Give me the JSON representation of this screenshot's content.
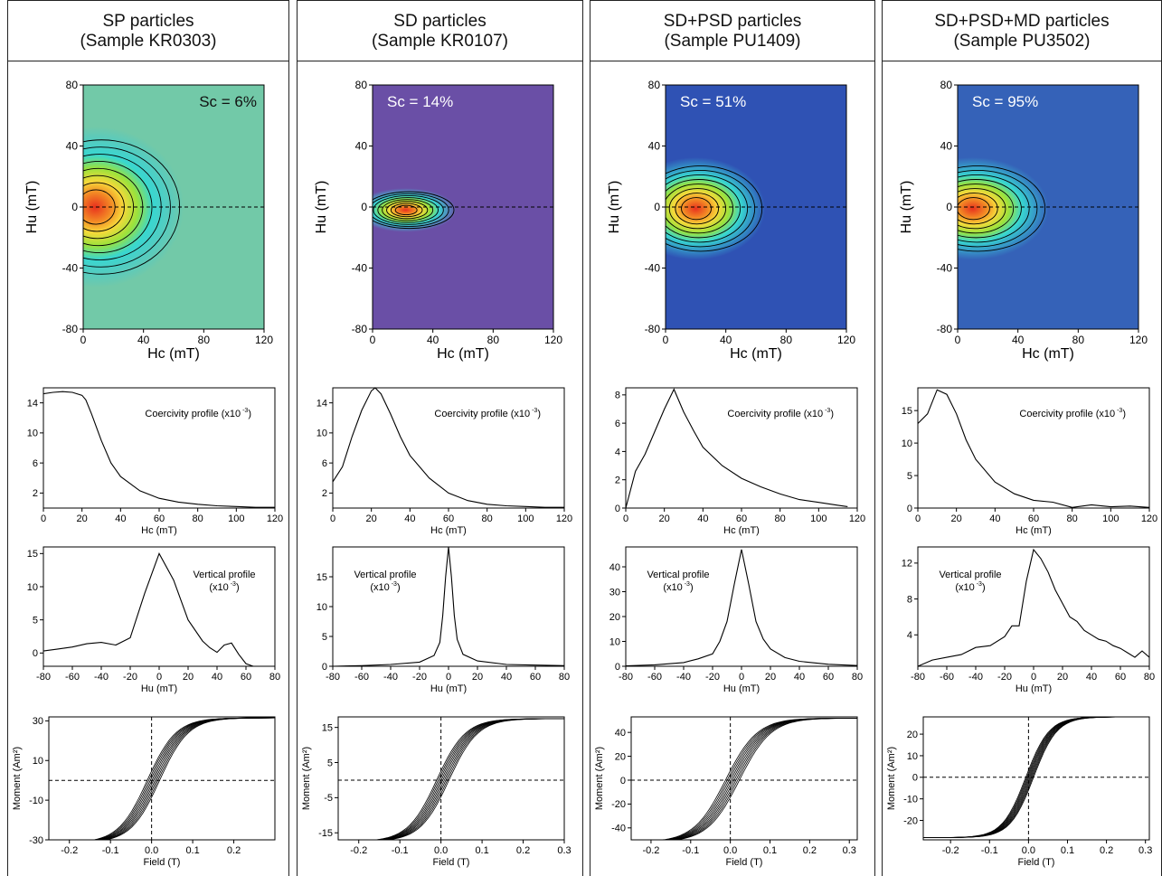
{
  "colors": {
    "sp_background": "#72c9a8",
    "sd_background": "#6a4fa6",
    "psd_background": "#2f52b4",
    "md_background": "#3562b8",
    "contour_line": "#000000",
    "peak_red": "#e8301e"
  },
  "columns": [
    {
      "title": "SP particles",
      "sample": "(Sample KR0303)",
      "sc_label": "Sc = 6%",
      "forc": {
        "xlabel": "Hc (mT)",
        "ylabel": "Hu (mT)",
        "xticks": [
          "0",
          "40",
          "80",
          "120"
        ],
        "yticks": [
          "80",
          "40",
          "0",
          "-40",
          "-80"
        ],
        "xlim": [
          0,
          120
        ],
        "ylim": [
          -80,
          80
        ],
        "peak": {
          "hc": 8,
          "hu": 0
        },
        "spread": {
          "hc": 28,
          "hu": 22
        }
      },
      "coercivity": {
        "type": "line",
        "label": "Coercivity profile (x10",
        "exp": "-3",
        "close": ")",
        "xlabel": "Hc (mT)",
        "xticks": [
          "0",
          "20",
          "40",
          "60",
          "80",
          "100",
          "120"
        ],
        "yticks": [
          "2",
          "6",
          "10",
          "14"
        ],
        "xlim": [
          0,
          120
        ],
        "ylim": [
          0,
          16
        ],
        "x": [
          0,
          5,
          10,
          15,
          20,
          22,
          25,
          30,
          35,
          40,
          50,
          60,
          70,
          80,
          90,
          100,
          110,
          120
        ],
        "y": [
          15.2,
          15.4,
          15.5,
          15.4,
          15.0,
          14.4,
          12.5,
          9.0,
          6.0,
          4.2,
          2.3,
          1.3,
          0.8,
          0.5,
          0.3,
          0.2,
          0.1,
          0.1
        ]
      },
      "vertical": {
        "type": "line",
        "label": "Vertical profile",
        "label2": "(x10",
        "exp": "-3",
        "close": ")",
        "xlabel": "Hu (mT)",
        "xticks": [
          "-80",
          "-60",
          "-40",
          "-20",
          "0",
          "20",
          "40",
          "60",
          "80"
        ],
        "yticks": [
          "0",
          "5",
          "10",
          "15"
        ],
        "xlim": [
          -80,
          80
        ],
        "ylim": [
          -2,
          16
        ],
        "x": [
          -80,
          -70,
          -60,
          -50,
          -40,
          -30,
          -20,
          -10,
          0,
          10,
          20,
          30,
          35,
          40,
          45,
          50,
          55,
          60,
          65,
          70,
          75,
          80
        ],
        "y": [
          0.3,
          0.6,
          0.9,
          1.4,
          1.6,
          1.2,
          2.3,
          9.0,
          15.0,
          11.0,
          5.0,
          1.8,
          0.8,
          0.1,
          1.2,
          1.5,
          -0.2,
          -1.6,
          -2.0,
          -2.0,
          -2.0,
          -2.0
        ]
      },
      "hysteresis": {
        "type": "line",
        "xlabel": "Field (T)",
        "ylabel": "Moment (Am²)",
        "xticks": [
          "-0.2",
          "-0.1",
          "0.0",
          "0.1",
          "0.2"
        ],
        "yticks": [
          "30",
          "10",
          "-10",
          "-30"
        ],
        "xlim": [
          -0.25,
          0.3
        ],
        "ylim": [
          -30,
          32
        ],
        "ms": 31.5,
        "hk": 0.07,
        "hc_spread": 0.03
      }
    },
    {
      "title": "SD particles",
      "sample": "(Sample KR0107)",
      "sc_label": "Sc = 14%",
      "forc": {
        "xlabel": "Hc (mT)",
        "ylabel": "Hu (mT)",
        "xticks": [
          "0",
          "40",
          "80",
          "120"
        ],
        "yticks": [
          "80",
          "40",
          "0",
          "-40",
          "-80"
        ],
        "xlim": [
          0,
          120
        ],
        "ylim": [
          -80,
          80
        ],
        "peak": {
          "hc": 22,
          "hu": -2
        },
        "spread": {
          "hc": 16,
          "hu": 6
        }
      },
      "coercivity": {
        "type": "line",
        "label": "Coercivity profile (x10",
        "exp": "-3",
        "close": ")",
        "xlabel": "Hc (mT)",
        "xticks": [
          "0",
          "20",
          "40",
          "60",
          "80",
          "100",
          "120"
        ],
        "yticks": [
          "2",
          "6",
          "10",
          "14"
        ],
        "xlim": [
          0,
          120
        ],
        "ylim": [
          0,
          16
        ],
        "x": [
          0,
          5,
          10,
          15,
          20,
          22,
          25,
          30,
          35,
          40,
          50,
          60,
          70,
          80,
          90,
          100,
          110,
          120
        ],
        "y": [
          3.5,
          5.5,
          9.5,
          13.0,
          15.6,
          16.0,
          15.2,
          12.5,
          9.5,
          7.0,
          4.0,
          2.0,
          1.0,
          0.5,
          0.3,
          0.2,
          0.1,
          0.1
        ]
      },
      "vertical": {
        "type": "line",
        "label": "Vertical profile",
        "label2": "(x10",
        "exp": "-3",
        "close": ")",
        "xlabel": "Hu (mT)",
        "xticks": [
          "-80",
          "-60",
          "-40",
          "-20",
          "0",
          "20",
          "40",
          "60",
          "80"
        ],
        "yticks": [
          "0",
          "5",
          "10",
          "15"
        ],
        "xlim": [
          -80,
          80
        ],
        "ylim": [
          0,
          20
        ],
        "x": [
          -80,
          -60,
          -40,
          -20,
          -10,
          -6,
          -4,
          -2,
          0,
          2,
          4,
          6,
          10,
          20,
          40,
          60,
          80
        ],
        "y": [
          0,
          0.1,
          0.3,
          0.7,
          1.8,
          4.0,
          8.5,
          15.0,
          20.0,
          15.0,
          8.5,
          4.5,
          2.0,
          0.9,
          0.3,
          0.2,
          0.1
        ]
      },
      "hysteresis": {
        "type": "line",
        "xlabel": "Field (T)",
        "ylabel": "Moment (Am²)",
        "xticks": [
          "-0.2",
          "-0.1",
          "0.0",
          "0.1",
          "0.2",
          "0.3"
        ],
        "yticks": [
          "15",
          "5",
          "-5",
          "-15"
        ],
        "xlim": [
          -0.25,
          0.3
        ],
        "ylim": [
          -17,
          18
        ],
        "ms": 17.5,
        "hk": 0.07,
        "hc_spread": 0.03
      }
    },
    {
      "title": "SD+PSD particles",
      "sample": "(Sample PU1409)",
      "sc_label": "Sc = 51%",
      "forc": {
        "xlabel": "Hc (mT)",
        "ylabel": "Hu (mT)",
        "xticks": [
          "0",
          "40",
          "80",
          "120"
        ],
        "yticks": [
          "80",
          "40",
          "0",
          "-40",
          "-80"
        ],
        "xlim": [
          0,
          120
        ],
        "ylim": [
          -80,
          80
        ],
        "peak": {
          "hc": 20,
          "hu": -1
        },
        "spread": {
          "hc": 22,
          "hu": 14
        }
      },
      "coercivity": {
        "type": "line",
        "label": "Coercivity profile (x10",
        "exp": "-3",
        "close": ")",
        "xlabel": "Hc (mT)",
        "xticks": [
          "0",
          "20",
          "40",
          "60",
          "80",
          "100",
          "120"
        ],
        "yticks": [
          "0",
          "2",
          "4",
          "6",
          "8"
        ],
        "xlim": [
          0,
          120
        ],
        "ylim": [
          0,
          8.5
        ],
        "x": [
          0,
          5,
          10,
          15,
          20,
          25,
          30,
          35,
          40,
          50,
          60,
          70,
          80,
          90,
          100,
          110,
          115
        ],
        "y": [
          0,
          2.6,
          3.8,
          5.4,
          7.0,
          8.4,
          6.8,
          5.5,
          4.3,
          3.0,
          2.1,
          1.5,
          1.0,
          0.6,
          0.4,
          0.2,
          0.1
        ]
      },
      "vertical": {
        "type": "line",
        "label": "Vertical profile",
        "label2": "(x10",
        "exp": "-3",
        "close": ")",
        "xlabel": "Hu (mT)",
        "xticks": [
          "-80",
          "-60",
          "-40",
          "-20",
          "0",
          "20",
          "40",
          "60",
          "80"
        ],
        "yticks": [
          "0",
          "10",
          "20",
          "30",
          "40"
        ],
        "xlim": [
          -80,
          80
        ],
        "ylim": [
          0,
          48
        ],
        "x": [
          -80,
          -60,
          -40,
          -30,
          -20,
          -15,
          -10,
          -5,
          0,
          5,
          10,
          15,
          20,
          30,
          40,
          60,
          80
        ],
        "y": [
          0.2,
          0.6,
          1.5,
          3.0,
          5.0,
          10.0,
          18.0,
          33.0,
          47.0,
          33.0,
          18.0,
          11.0,
          7.0,
          3.5,
          2.0,
          0.8,
          0.3
        ]
      },
      "hysteresis": {
        "type": "line",
        "xlabel": "Field (T)",
        "ylabel": "Moment (Am²)",
        "xticks": [
          "-0.2",
          "-0.1",
          "0.0",
          "0.1",
          "0.2",
          "0.3"
        ],
        "yticks": [
          "40",
          "20",
          "0",
          "-20",
          "-40"
        ],
        "xlim": [
          -0.25,
          0.32
        ],
        "ylim": [
          -50,
          53
        ],
        "ms": 52,
        "hk": 0.08,
        "hc_spread": 0.035
      }
    },
    {
      "title": "SD+PSD+MD particles",
      "sample": "(Sample PU3502)",
      "sc_label": "Sc = 95%",
      "forc": {
        "xlabel": "Hc (mT)",
        "ylabel": "Hu (mT)",
        "xticks": [
          "0",
          "40",
          "80",
          "120"
        ],
        "yticks": [
          "80",
          "40",
          "0",
          "-40",
          "-80"
        ],
        "xlim": [
          0,
          120
        ],
        "ylim": [
          -80,
          80
        ],
        "peak": {
          "hc": 10,
          "hu": -1
        },
        "spread": {
          "hc": 24,
          "hu": 14
        }
      },
      "coercivity": {
        "type": "line",
        "label": "Coercivity profile (x10",
        "exp": "-3",
        "close": ")",
        "xlabel": "Hc (mT)",
        "xticks": [
          "0",
          "20",
          "40",
          "60",
          "80",
          "100",
          "120"
        ],
        "yticks": [
          "0",
          "5",
          "10",
          "15"
        ],
        "xlim": [
          0,
          120
        ],
        "ylim": [
          0,
          18.5
        ],
        "x": [
          0,
          5,
          10,
          15,
          20,
          25,
          30,
          40,
          50,
          60,
          70,
          80,
          90,
          100,
          110,
          120
        ],
        "y": [
          13.0,
          14.5,
          18.2,
          17.5,
          14.5,
          10.5,
          7.5,
          4.0,
          2.2,
          1.2,
          0.9,
          0.1,
          0.5,
          0.2,
          0.3,
          0.1
        ]
      },
      "vertical": {
        "type": "line",
        "label": "Vertical profile",
        "label2": "(x10",
        "exp": "-3",
        "close": ")",
        "xlabel": "Hu (mT)",
        "xticks": [
          "-80",
          "-60",
          "-40",
          "-20",
          "0",
          "20",
          "40",
          "60",
          "80"
        ],
        "yticks": [
          "4",
          "8",
          "12"
        ],
        "xlim": [
          -80,
          80
        ],
        "ylim": [
          0.5,
          13.8
        ],
        "x": [
          -80,
          -70,
          -60,
          -50,
          -40,
          -30,
          -20,
          -15,
          -10,
          -5,
          0,
          5,
          10,
          15,
          20,
          25,
          30,
          35,
          40,
          45,
          50,
          55,
          60,
          65,
          70,
          75,
          80
        ],
        "y": [
          0.5,
          1.2,
          1.5,
          1.8,
          2.6,
          2.8,
          3.8,
          5.0,
          5.0,
          10.0,
          13.5,
          12.5,
          11.0,
          9.0,
          7.5,
          6.0,
          5.5,
          4.5,
          4.0,
          3.5,
          3.3,
          2.8,
          2.5,
          2.0,
          1.5,
          2.2,
          1.5
        ]
      },
      "hysteresis": {
        "type": "line",
        "xlabel": "Field (T)",
        "ylabel": "Moment (Am²)",
        "xticks": [
          "-0.2",
          "-0.1",
          "0.0",
          "0.1",
          "0.2",
          "0.3"
        ],
        "yticks": [
          "20",
          "10",
          "0",
          "-10",
          "-20"
        ],
        "xlim": [
          -0.27,
          0.31
        ],
        "ylim": [
          -29,
          28
        ],
        "ms": 28,
        "hk": 0.06,
        "hc_spread": 0.02
      }
    }
  ]
}
